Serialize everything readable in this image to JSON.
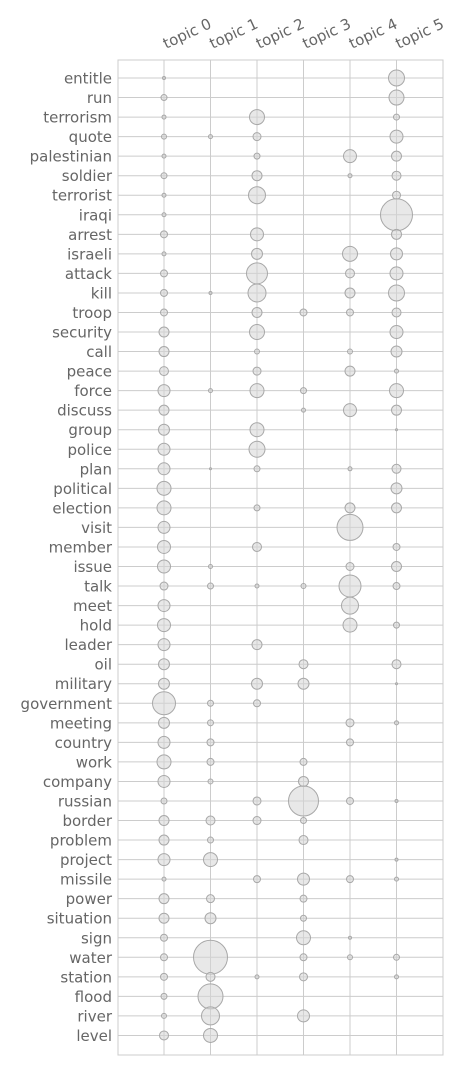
{
  "chart_data": {
    "type": "scatter",
    "title": "",
    "xlabel": "",
    "ylabel": "",
    "grid": true,
    "columns": [
      "topic 0",
      "topic 1",
      "topic 2",
      "topic 3",
      "topic 4",
      "topic 5"
    ],
    "rows": [
      "entitle",
      "run",
      "terrorism",
      "quote",
      "palestinian",
      "soldier",
      "terrorist",
      "iraqi",
      "arrest",
      "israeli",
      "attack",
      "kill",
      "troop",
      "security",
      "call",
      "peace",
      "force",
      "discuss",
      "group",
      "police",
      "plan",
      "political",
      "election",
      "visit",
      "member",
      "issue",
      "talk",
      "meet",
      "hold",
      "leader",
      "oil",
      "military",
      "government",
      "meeting",
      "country",
      "work",
      "company",
      "russian",
      "border",
      "problem",
      "project",
      "missile",
      "power",
      "situation",
      "sign",
      "water",
      "station",
      "flood",
      "river",
      "level"
    ],
    "cells": [
      [
        "entitle",
        0,
        1.5
      ],
      [
        "entitle",
        5,
        8
      ],
      [
        "run",
        0,
        3
      ],
      [
        "run",
        5,
        7.5
      ],
      [
        "terrorism",
        0,
        2
      ],
      [
        "terrorism",
        2,
        7.5
      ],
      [
        "terrorism",
        5,
        3
      ],
      [
        "quote",
        0,
        2.5
      ],
      [
        "quote",
        1,
        2
      ],
      [
        "quote",
        2,
        4
      ],
      [
        "quote",
        5,
        6.5
      ],
      [
        "palestinian",
        0,
        2
      ],
      [
        "palestinian",
        2,
        3
      ],
      [
        "palestinian",
        4,
        6.5
      ],
      [
        "palestinian",
        5,
        5
      ],
      [
        "soldier",
        0,
        3
      ],
      [
        "soldier",
        2,
        5
      ],
      [
        "soldier",
        4,
        2
      ],
      [
        "soldier",
        5,
        4.5
      ],
      [
        "terrorist",
        0,
        2
      ],
      [
        "terrorist",
        2,
        8.5
      ],
      [
        "terrorist",
        5,
        4
      ],
      [
        "iraqi",
        0,
        2
      ],
      [
        "iraqi",
        5,
        16
      ],
      [
        "arrest",
        0,
        3.5
      ],
      [
        "arrest",
        2,
        6.5
      ],
      [
        "arrest",
        5,
        5
      ],
      [
        "israeli",
        0,
        2
      ],
      [
        "israeli",
        2,
        5.5
      ],
      [
        "israeli",
        4,
        7.5
      ],
      [
        "israeli",
        5,
        6
      ],
      [
        "attack",
        0,
        3.5
      ],
      [
        "attack",
        2,
        10.5
      ],
      [
        "attack",
        4,
        4.5
      ],
      [
        "attack",
        5,
        6.5
      ],
      [
        "kill",
        0,
        3.5
      ],
      [
        "kill",
        1,
        1.5
      ],
      [
        "kill",
        2,
        9
      ],
      [
        "kill",
        4,
        5
      ],
      [
        "kill",
        5,
        8
      ],
      [
        "troop",
        0,
        3.5
      ],
      [
        "troop",
        2,
        5
      ],
      [
        "troop",
        3,
        3.5
      ],
      [
        "troop",
        4,
        3.5
      ],
      [
        "troop",
        5,
        4.5
      ],
      [
        "security",
        0,
        5
      ],
      [
        "security",
        2,
        7.5
      ],
      [
        "security",
        5,
        6.5
      ],
      [
        "call",
        0,
        5
      ],
      [
        "call",
        2,
        2.5
      ],
      [
        "call",
        4,
        2.5
      ],
      [
        "call",
        5,
        5.5
      ],
      [
        "peace",
        0,
        4.5
      ],
      [
        "peace",
        2,
        4
      ],
      [
        "peace",
        4,
        5
      ],
      [
        "peace",
        5,
        2
      ],
      [
        "force",
        0,
        6
      ],
      [
        "force",
        1,
        2
      ],
      [
        "force",
        2,
        7
      ],
      [
        "force",
        3,
        3
      ],
      [
        "force",
        5,
        7
      ],
      [
        "discuss",
        0,
        5
      ],
      [
        "discuss",
        3,
        2
      ],
      [
        "discuss",
        4,
        6.5
      ],
      [
        "discuss",
        5,
        5
      ],
      [
        "group",
        0,
        5.5
      ],
      [
        "group",
        2,
        7
      ],
      [
        "group",
        5,
        1
      ],
      [
        "police",
        0,
        6
      ],
      [
        "police",
        2,
        8
      ],
      [
        "plan",
        0,
        6
      ],
      [
        "plan",
        1,
        1
      ],
      [
        "plan",
        2,
        3
      ],
      [
        "plan",
        4,
        2
      ],
      [
        "plan",
        5,
        4.5
      ],
      [
        "political",
        0,
        7
      ],
      [
        "political",
        5,
        5.5
      ],
      [
        "election",
        0,
        7
      ],
      [
        "election",
        2,
        3
      ],
      [
        "election",
        4,
        5
      ],
      [
        "election",
        5,
        5
      ],
      [
        "visit",
        0,
        6
      ],
      [
        "visit",
        4,
        13
      ],
      [
        "member",
        0,
        6.5
      ],
      [
        "member",
        2,
        4.5
      ],
      [
        "member",
        5,
        3.5
      ],
      [
        "issue",
        0,
        6.5
      ],
      [
        "issue",
        1,
        2
      ],
      [
        "issue",
        4,
        4
      ],
      [
        "issue",
        5,
        5
      ],
      [
        "talk",
        0,
        4
      ],
      [
        "talk",
        1,
        3
      ],
      [
        "talk",
        2,
        2
      ],
      [
        "talk",
        3,
        2.5
      ],
      [
        "talk",
        4,
        11
      ],
      [
        "talk",
        5,
        3.5
      ],
      [
        "meet",
        0,
        6
      ],
      [
        "meet",
        4,
        8.5
      ],
      [
        "hold",
        0,
        6.5
      ],
      [
        "hold",
        4,
        7
      ],
      [
        "hold",
        5,
        3
      ],
      [
        "leader",
        0,
        6
      ],
      [
        "leader",
        2,
        5
      ],
      [
        "oil",
        0,
        5.5
      ],
      [
        "oil",
        3,
        4.5
      ],
      [
        "oil",
        5,
        4.5
      ],
      [
        "military",
        0,
        5.5
      ],
      [
        "military",
        2,
        5.5
      ],
      [
        "military",
        3,
        5.5
      ],
      [
        "military",
        5,
        1
      ],
      [
        "government",
        0,
        11.5
      ],
      [
        "government",
        1,
        3
      ],
      [
        "government",
        2,
        3.5
      ],
      [
        "meeting",
        0,
        5.5
      ],
      [
        "meeting",
        1,
        3
      ],
      [
        "meeting",
        4,
        4
      ],
      [
        "meeting",
        5,
        2
      ],
      [
        "country",
        0,
        6
      ],
      [
        "country",
        1,
        3.5
      ],
      [
        "country",
        4,
        3.5
      ],
      [
        "work",
        0,
        7
      ],
      [
        "work",
        1,
        3.5
      ],
      [
        "work",
        3,
        3.5
      ],
      [
        "company",
        0,
        6
      ],
      [
        "company",
        1,
        2.5
      ],
      [
        "company",
        3,
        5
      ],
      [
        "russian",
        0,
        3
      ],
      [
        "russian",
        2,
        4
      ],
      [
        "russian",
        3,
        15
      ],
      [
        "russian",
        4,
        3.5
      ],
      [
        "russian",
        5,
        1.5
      ],
      [
        "border",
        0,
        5
      ],
      [
        "border",
        1,
        4.5
      ],
      [
        "border",
        2,
        4
      ],
      [
        "border",
        3,
        3
      ],
      [
        "problem",
        0,
        5
      ],
      [
        "problem",
        1,
        3
      ],
      [
        "problem",
        3,
        4.5
      ],
      [
        "project",
        0,
        6
      ],
      [
        "project",
        1,
        7
      ],
      [
        "project",
        5,
        1.5
      ],
      [
        "missile",
        0,
        2
      ],
      [
        "missile",
        2,
        3.5
      ],
      [
        "missile",
        3,
        6
      ],
      [
        "missile",
        4,
        3.5
      ],
      [
        "missile",
        5,
        2
      ],
      [
        "power",
        0,
        5
      ],
      [
        "power",
        1,
        4
      ],
      [
        "power",
        3,
        3.5
      ],
      [
        "situation",
        0,
        5
      ],
      [
        "situation",
        1,
        5.5
      ],
      [
        "situation",
        3,
        3
      ],
      [
        "sign",
        0,
        3.5
      ],
      [
        "sign",
        3,
        7
      ],
      [
        "sign",
        4,
        1.5
      ],
      [
        "water",
        0,
        3.5
      ],
      [
        "water",
        1,
        17
      ],
      [
        "water",
        3,
        3.5
      ],
      [
        "water",
        4,
        2.5
      ],
      [
        "water",
        5,
        3
      ],
      [
        "station",
        0,
        3.5
      ],
      [
        "station",
        1,
        4.5
      ],
      [
        "station",
        2,
        2
      ],
      [
        "station",
        3,
        4
      ],
      [
        "station",
        5,
        2
      ],
      [
        "flood",
        0,
        3
      ],
      [
        "flood",
        1,
        12.5
      ],
      [
        "river",
        0,
        2.5
      ],
      [
        "river",
        1,
        9
      ],
      [
        "river",
        3,
        6
      ],
      [
        "level",
        0,
        4.5
      ],
      [
        "level",
        1,
        7
      ]
    ]
  }
}
